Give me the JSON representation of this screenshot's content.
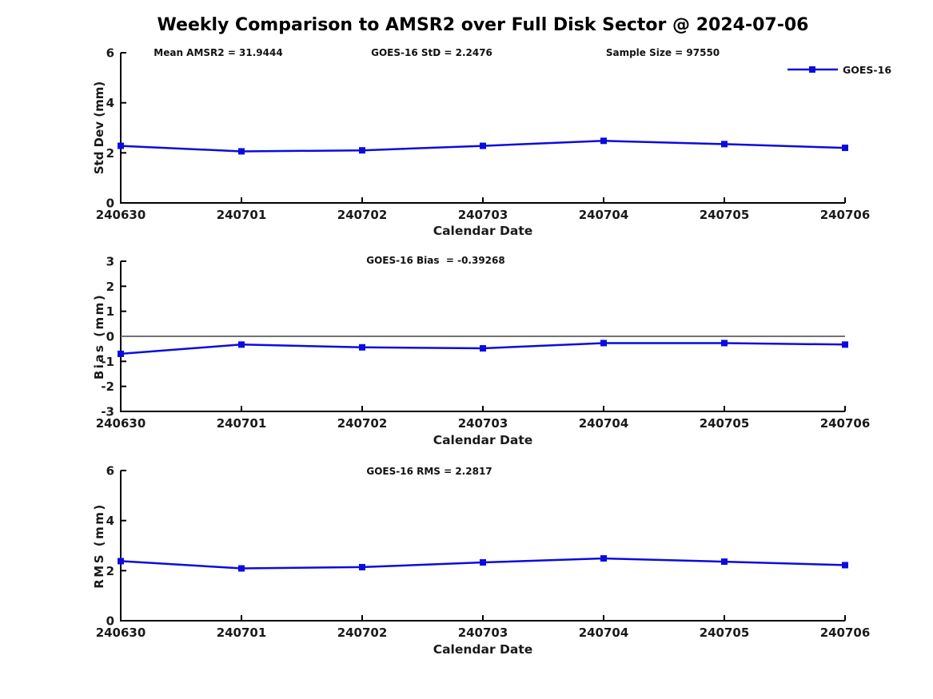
{
  "title": "Weekly Comparison to AMSR2 over Full Disk Sector @ 2024-07-06",
  "colors": {
    "line": "#0b0bdf",
    "axis": "#000000",
    "zero_line": "#737373",
    "text": "#1a1a1a"
  },
  "chart_data": [
    {
      "type": "line",
      "name": "std-dev-vs-date",
      "x": [
        "240630",
        "240701",
        "240702",
        "240703",
        "240704",
        "240705",
        "240706"
      ],
      "series": [
        {
          "name": "GOES-16",
          "values": [
            2.28,
            2.06,
            2.1,
            2.28,
            2.48,
            2.35,
            2.2
          ],
          "color": "#0b0bdf",
          "marker": "square"
        }
      ],
      "xlabel": "Calendar Date",
      "ylabel": "Std Dev (mm)",
      "ylim": [
        0,
        6
      ],
      "yticks": [
        0,
        2,
        4,
        6
      ],
      "grid": false,
      "annotations": [
        "Mean AMSR2 = 31.9444",
        "GOES-16 StD = 2.2476",
        "Sample Size = 97550"
      ],
      "legend": {
        "label": "GOES-16",
        "position": "top-right"
      }
    },
    {
      "type": "line",
      "name": "bias-vs-date",
      "x": [
        "240630",
        "240701",
        "240702",
        "240703",
        "240704",
        "240705",
        "240706"
      ],
      "series": [
        {
          "name": "GOES-16",
          "values": [
            -0.7,
            -0.33,
            -0.44,
            -0.48,
            -0.27,
            -0.27,
            -0.33
          ],
          "color": "#0b0bdf",
          "marker": "square"
        }
      ],
      "xlabel": "Calendar Date",
      "ylabel": "Bias (mm)",
      "ylim": [
        -3,
        3
      ],
      "yticks": [
        -3,
        -2,
        -1,
        0,
        1,
        2,
        3
      ],
      "zero_line": true,
      "grid": false,
      "annotations": [
        "GOES-16 Bias  = -0.39268"
      ]
    },
    {
      "type": "line",
      "name": "rms-vs-date",
      "x": [
        "240630",
        "240701",
        "240702",
        "240703",
        "240704",
        "240705",
        "240706"
      ],
      "series": [
        {
          "name": "GOES-16",
          "values": [
            2.38,
            2.09,
            2.14,
            2.33,
            2.49,
            2.36,
            2.22
          ],
          "color": "#0b0bdf",
          "marker": "square"
        }
      ],
      "xlabel": "Calendar Date",
      "ylabel": "RMS (mm)",
      "ylim": [
        0,
        6
      ],
      "yticks": [
        0,
        2,
        4,
        6
      ],
      "grid": false,
      "annotations": [
        "GOES-16 RMS = 2.2817"
      ]
    }
  ]
}
